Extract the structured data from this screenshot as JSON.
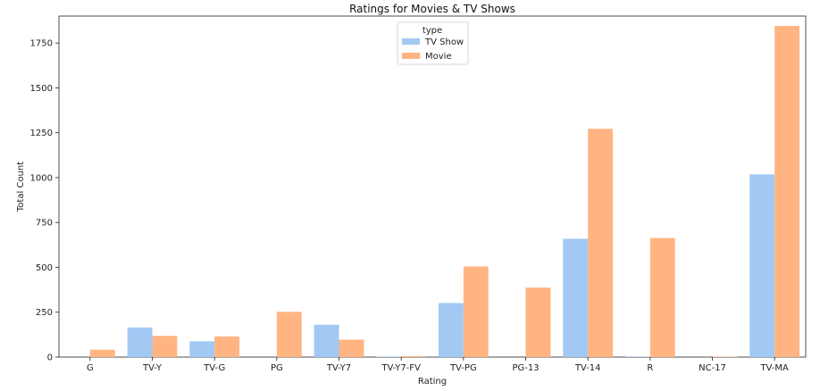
{
  "chart_data": {
    "type": "bar",
    "title": "Ratings for Movies & TV Shows",
    "xlabel": "Rating",
    "ylabel": "Total Count",
    "categories": [
      "G",
      "TV-Y",
      "TV-G",
      "PG",
      "TV-Y7",
      "TV-Y7-FV",
      "TV-PG",
      "PG-13",
      "TV-14",
      "R",
      "NC-17",
      "TV-MA"
    ],
    "yticks": [
      0,
      250,
      500,
      750,
      1000,
      1250,
      1500,
      1750
    ],
    "ylim": [
      0,
      1900
    ],
    "grid": false,
    "legend": {
      "title": "type",
      "placement": "top-center"
    },
    "series": [
      {
        "name": "TV Show",
        "color": "#a1c9f4",
        "values": [
          0,
          165,
          88,
          0,
          180,
          3,
          301,
          0,
          659,
          2,
          0,
          1018
        ]
      },
      {
        "name": "Movie",
        "color": "#ffb482",
        "values": [
          41,
          118,
          115,
          252,
          97,
          5,
          505,
          387,
          1272,
          663,
          3,
          1845
        ]
      }
    ]
  }
}
